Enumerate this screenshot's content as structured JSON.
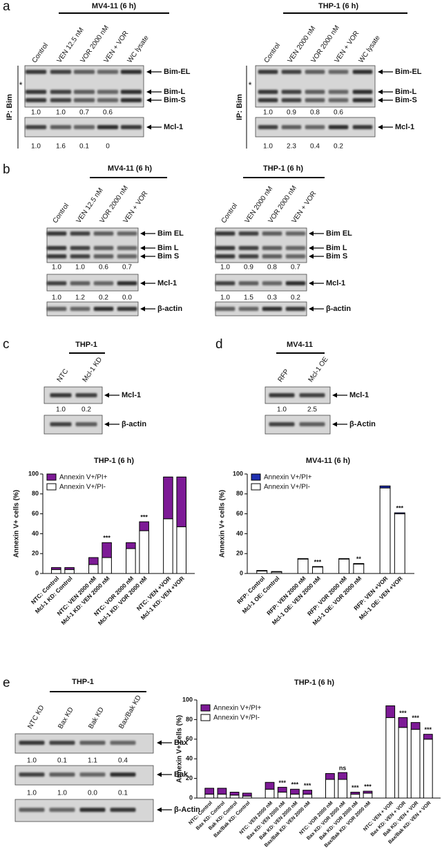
{
  "letters": [
    "a",
    "b",
    "c",
    "d",
    "e"
  ],
  "blots": [
    {
      "header": "MV4-11 (6 h)",
      "lanes": [
        "Control",
        "VEN 12.5 nM",
        "VOR 2000 nM",
        "VEN + VOR",
        "WC lysate"
      ],
      "side_label": "IP: Bim",
      "marker": "*",
      "strips": [
        {
          "labels": [
            "Bim-EL",
            "Bim-L",
            "Bim-S"
          ],
          "quant": [
            "1.0",
            "1.0",
            "0.7",
            "0.6"
          ]
        },
        {
          "labels": [
            "Mcl-1"
          ],
          "quant": [
            "1.0",
            "1.6",
            "0.1",
            "0"
          ]
        }
      ]
    },
    {
      "header": "THP-1 (6 h)",
      "lanes": [
        "Control",
        "VEN 2000 nM",
        "VOR 2000 nM",
        "VEN + VOR",
        "WC lysate"
      ],
      "side_label": "IP: Bim",
      "marker": "*",
      "strips": [
        {
          "labels": [
            "Bim-EL",
            "Bim-L",
            "Bim-S"
          ],
          "quant": [
            "1.0",
            "0.9",
            "0.8",
            "0.6"
          ]
        },
        {
          "labels": [
            "Mcl-1"
          ],
          "quant": [
            "1.0",
            "2.3",
            "0.4",
            "0.2"
          ]
        }
      ]
    },
    {
      "header": "MV4-11 (6 h)",
      "lanes": [
        "Control",
        "VEN 12.5 nM",
        "VOR 2000 nM",
        "VEN + VOR"
      ],
      "strips": [
        {
          "labels": [
            "Bim EL",
            "Bim L",
            "Bim S"
          ],
          "quant": [
            "1.0",
            "1.0",
            "0.6",
            "0.7"
          ]
        },
        {
          "labels": [
            "Mcl-1"
          ],
          "quant": [
            "1.0",
            "1.2",
            "0.2",
            "0.0"
          ]
        },
        {
          "labels": [
            "β-actin"
          ]
        }
      ]
    },
    {
      "header": "THP-1 (6 h)",
      "lanes": [
        "Control",
        "VEN 2000 nM",
        "VOR 2000 nM",
        "VEN + VOR"
      ],
      "strips": [
        {
          "labels": [
            "Bim EL",
            "Bim L",
            "Bim S"
          ],
          "quant": [
            "1.0",
            "0.9",
            "0.8",
            "0.7"
          ]
        },
        {
          "labels": [
            "Mcl-1"
          ],
          "quant": [
            "1.0",
            "1.5",
            "0.3",
            "0.2"
          ]
        },
        {
          "labels": [
            "β-actin"
          ]
        }
      ]
    },
    {
      "header": "THP-1",
      "lanes": [
        "NTC",
        "Mcl-1 KD"
      ],
      "strips": [
        {
          "labels": [
            "Mcl-1"
          ],
          "quant": [
            "1.0",
            "0.2"
          ]
        },
        {
          "labels": [
            "β-actin"
          ]
        }
      ]
    },
    {
      "header": "MV4-11",
      "lanes": [
        "RFP",
        "Mcl-1 OE"
      ],
      "strips": [
        {
          "labels": [
            "Mcl-1"
          ],
          "quant": [
            "1.0",
            "2.5"
          ]
        },
        {
          "labels": [
            "β-Actin"
          ]
        }
      ]
    },
    {
      "header": "THP-1",
      "lanes": [
        "NTC KD",
        "Bax KD",
        "Bak KD",
        "Bax/Bak KD"
      ],
      "strips": [
        {
          "labels": [
            "Bax"
          ],
          "quant": [
            "1.0",
            "0.1",
            "1.1",
            "0.4"
          ]
        },
        {
          "labels": [
            "Bak"
          ],
          "quant": [
            "1.0",
            "1.0",
            "0.0",
            "0.1"
          ]
        },
        {
          "labels": [
            "β-Actin"
          ]
        }
      ]
    }
  ],
  "chart_data": [
    {
      "type": "stacked_bar",
      "title": "THP-1 (6 h)",
      "y_label": "Annexin V+ cells (%)",
      "categories": [
        "NTC: Control",
        "Mcl-1 KD: Control",
        "NTC: VEN 2000 nM",
        "Mcl-1 KD: VEN 2000 nM",
        "NTC: VOR 2000 nM",
        "Mcl-1 KD: VOR 2000 nM",
        "NTC: VEN +VOR",
        "Mcl-1 KD: VEN +VOR"
      ],
      "series": [
        {
          "name": "Annexin V+/PI+",
          "color": "#7d1a96",
          "values": [
            2,
            2,
            7,
            15,
            6,
            9,
            42,
            50
          ]
        },
        {
          "name": "Annexin V+/PI-",
          "color": "#ffffff",
          "values": [
            4,
            4,
            9,
            16,
            25,
            43,
            55,
            47
          ]
        }
      ],
      "significance": [
        null,
        null,
        null,
        "***",
        null,
        "***",
        null,
        null
      ],
      "ylim": [
        0,
        100
      ],
      "yticks": [
        0,
        20,
        40,
        60,
        80,
        100
      ]
    },
    {
      "type": "stacked_bar",
      "title": "MV4-11 (6 h)",
      "y_label": "Annexin V+ cells (%)",
      "categories": [
        "RFP: Control",
        "Mcl-1 OE: Control",
        "RFP: VEN 2000 nM",
        "Mcl-1 OE: VEN 2000 nM",
        "RFP: VOR 2000 nM",
        "Mcl-1 OE: VOR 2000 nM",
        "RFP: VEN +VOR",
        "Mcl-1 OE: VEN +VOR"
      ],
      "series": [
        {
          "name": "Annexin V+/PI+",
          "color": "#1f2fb0",
          "values": [
            0.5,
            0.5,
            0.5,
            0.5,
            0.5,
            0.5,
            2,
            1
          ]
        },
        {
          "name": "Annexin V+/PI-",
          "color": "#ffffff",
          "values": [
            2.5,
            1.5,
            14.5,
            6.5,
            14.5,
            9.5,
            86,
            60
          ]
        }
      ],
      "significance": [
        null,
        null,
        null,
        "***",
        null,
        "**",
        null,
        "***"
      ],
      "ylim": [
        0,
        100
      ],
      "yticks": [
        0,
        20,
        40,
        60,
        80,
        100
      ]
    },
    {
      "type": "stacked_bar",
      "title": "THP-1 (6 h)",
      "y_label": "Annexin V+ cells (%)",
      "categories": [
        "NTC: Control",
        "Bax KD: Control",
        "Bak KD: Control",
        "Bax/Bak KD: Control",
        "NTC: VEN 2000 nM",
        "Bax KD: VEN 2000 nM",
        "Bak KD: VEN 2000 nM",
        "Bax/Bak KD: VEN 2000 nM",
        "NTC: VOR 2000 nM",
        "Bax KD: VOR 2000 nM",
        "Bak KD: VOR 2000 nM",
        "Bax/Bak KD: VOR 2000 nM",
        "NTC: VEN + VOR",
        "Bax KD: VEN + VOR",
        "Bak KD: VEN + VOR",
        "Bax/Bak KD: VEN + VOR"
      ],
      "series": [
        {
          "name": "Annexin V+/PI+",
          "color": "#7d1a96",
          "values": [
            6,
            6,
            3,
            3,
            7,
            5,
            5,
            4,
            6,
            7,
            2,
            2,
            12,
            10,
            7,
            5
          ]
        },
        {
          "name": "Annexin V+/PI-",
          "color": "#ffffff",
          "values": [
            4,
            4,
            3,
            2,
            9,
            6,
            4,
            4,
            19,
            19,
            4,
            5,
            82,
            72,
            70,
            60
          ]
        }
      ],
      "significance": [
        null,
        null,
        null,
        null,
        null,
        "***",
        "***",
        "***",
        null,
        "ns",
        "***",
        "***",
        null,
        "***",
        "***",
        "***"
      ],
      "ylim": [
        0,
        100
      ],
      "yticks": [
        0,
        20,
        40,
        60,
        80,
        100
      ]
    }
  ]
}
